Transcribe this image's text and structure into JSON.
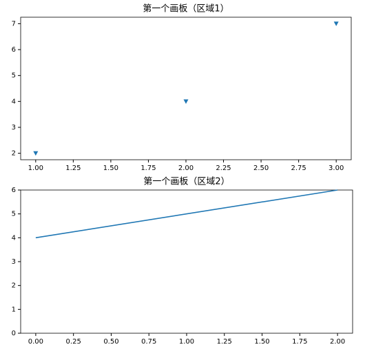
{
  "chart_data": [
    {
      "type": "scatter",
      "title": "第一个画板（区域1）",
      "marker": "v",
      "x": [
        1,
        2,
        3
      ],
      "series": [
        {
          "color": "#1f77b4",
          "values": [
            2,
            4,
            7
          ]
        }
      ],
      "xlim": [
        0.9,
        3.1
      ],
      "ylim": [
        1.75,
        7.25
      ],
      "xticks": [
        {
          "value": 1,
          "label": "1.00"
        },
        {
          "value": 1.25,
          "label": "1.25"
        },
        {
          "value": 1.5,
          "label": "1.50"
        },
        {
          "value": 1.75,
          "label": "1.75"
        },
        {
          "value": 2,
          "label": "2.00"
        },
        {
          "value": 2.25,
          "label": "2.25"
        },
        {
          "value": 2.5,
          "label": "2.50"
        },
        {
          "value": 2.75,
          "label": "2.75"
        },
        {
          "value": 3,
          "label": "3.00"
        }
      ],
      "yticks": [
        2,
        3,
        4,
        5,
        6,
        7
      ],
      "grid": false
    },
    {
      "type": "line",
      "title": "第一个画板（区域2）",
      "x": [
        0,
        2
      ],
      "series": [
        {
          "color": "#1f77b4",
          "values": [
            4,
            6
          ]
        }
      ],
      "xlim": [
        -0.1,
        2.1
      ],
      "ylim": [
        0,
        6
      ],
      "xticks": [
        {
          "value": 0,
          "label": "0.00"
        },
        {
          "value": 0.25,
          "label": "0.25"
        },
        {
          "value": 0.5,
          "label": "0.50"
        },
        {
          "value": 0.75,
          "label": "0.75"
        },
        {
          "value": 1,
          "label": "1.00"
        },
        {
          "value": 1.25,
          "label": "1.25"
        },
        {
          "value": 1.5,
          "label": "1.50"
        },
        {
          "value": 1.75,
          "label": "1.75"
        },
        {
          "value": 2,
          "label": "2.00"
        }
      ],
      "yticks": [
        0,
        1,
        2,
        3,
        4,
        5,
        6
      ],
      "grid": false
    }
  ]
}
